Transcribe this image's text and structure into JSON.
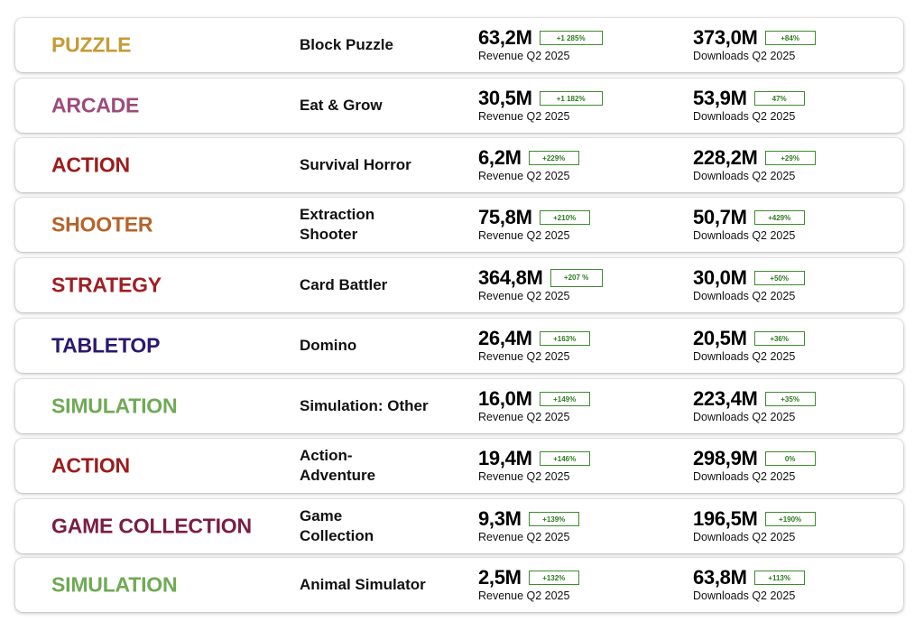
{
  "rows": [
    {
      "genre": "PUZZLE",
      "genre_color": "#c59b35",
      "subgenre": "Block Puzzle",
      "revenue": "63,2M",
      "revenue_change": "+1 285%",
      "revenue_label": "Revenue Q2 2025",
      "downloads": "373,0M",
      "downloads_change": "+84%",
      "downloads_label": "Downloads Q2 2025"
    },
    {
      "genre": "ARCADE",
      "genre_color": "#9c4c7a",
      "subgenre": "Eat & Grow",
      "revenue": "30,5M",
      "revenue_change": "+1 182%",
      "revenue_label": "Revenue Q2 2025",
      "downloads": "53,9M",
      "downloads_change": "47%",
      "downloads_label": "Downloads Q2 2025"
    },
    {
      "genre": "ACTION",
      "genre_color": "#9b1c1c",
      "subgenre": "Survival Horror",
      "revenue": "6,2M",
      "revenue_change": "+229%",
      "revenue_label": "Revenue Q2 2025",
      "downloads": "228,2M",
      "downloads_change": "+29%",
      "downloads_label": "Downloads Q2 2025"
    },
    {
      "genre": "SHOOTER",
      "genre_color": "#b5642a",
      "subgenre": "Extraction Shooter",
      "revenue": "75,8M",
      "revenue_change": "+210%",
      "revenue_label": "Revenue Q2 2025",
      "downloads": "50,7M",
      "downloads_change": "+429%",
      "downloads_label": "Downloads Q2 2025"
    },
    {
      "genre": "STRATEGY",
      "genre_color": "#a11e25",
      "subgenre": "Card Battler",
      "revenue": "364,8M",
      "revenue_change": "+207 %",
      "revenue_label": "Revenue Q2 2025",
      "downloads": "30,0M",
      "downloads_change": "+50%",
      "downloads_label": "Downloads Q2 2025"
    },
    {
      "genre": "TABLETOP",
      "genre_color": "#2a1a6e",
      "subgenre": "Domino",
      "revenue": "26,4M",
      "revenue_change": "+163%",
      "revenue_label": "Revenue Q2 2025",
      "downloads": "20,5M",
      "downloads_change": "+36%",
      "downloads_label": "Downloads Q2 2025"
    },
    {
      "genre": "SIMULATION",
      "genre_color": "#6faa55",
      "subgenre": "Simulation: Other",
      "revenue": "16,0M",
      "revenue_change": "+149%",
      "revenue_label": "Revenue Q2 2025",
      "downloads": "223,4M",
      "downloads_change": "+35%",
      "downloads_label": "Downloads Q2 2025"
    },
    {
      "genre": "ACTION",
      "genre_color": "#9b1c1c",
      "subgenre": "Action-Adventure",
      "revenue": "19,4M",
      "revenue_change": "+146%",
      "revenue_label": "Revenue Q2 2025",
      "downloads": "298,9M",
      "downloads_change": "0%",
      "downloads_label": "Downloads Q2 2025"
    },
    {
      "genre": "GAME COLLECTION",
      "genre_color": "#7a1d45",
      "subgenre": "Game Collection",
      "revenue": "9,3M",
      "revenue_change": "+139%",
      "revenue_label": "Revenue Q2 2025",
      "downloads": "196,5M",
      "downloads_change": "+190%",
      "downloads_label": "Downloads Q2 2025"
    },
    {
      "genre": "SIMULATION",
      "genre_color": "#6faa55",
      "subgenre": "Animal Simulator",
      "revenue": "2,5M",
      "revenue_change": "+132%",
      "revenue_label": "Revenue Q2 2025",
      "downloads": "63,8M",
      "downloads_change": "+113%",
      "downloads_label": "Downloads Q2 2025"
    }
  ]
}
